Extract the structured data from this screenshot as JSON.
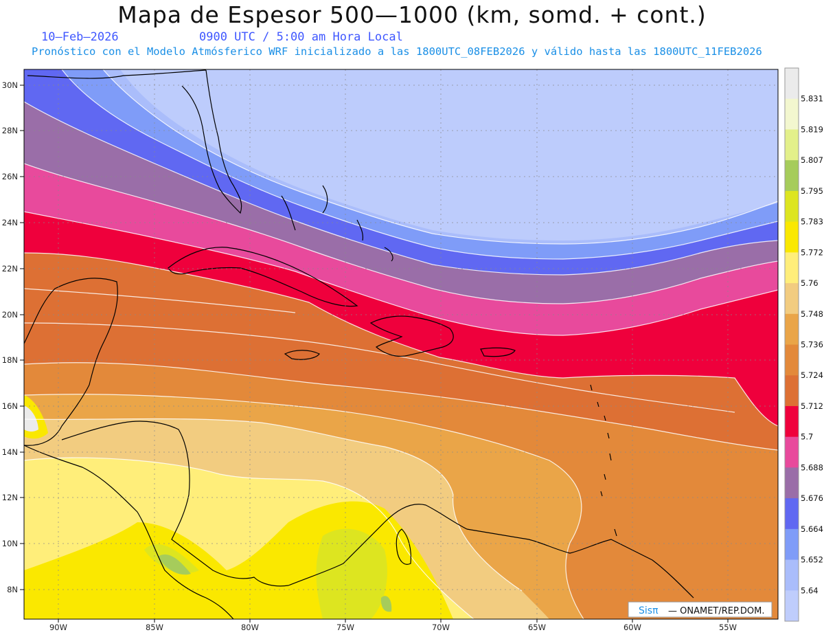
{
  "title": "Mapa de Espesor 500—1000 (km, somd. + cont.)",
  "date": "10—Feb—2026",
  "time": "0900 UTC / 5:00 am Hora Local",
  "subtitle": "Pronóstico con el Modelo Atmósferico WRF inicializado a las 1800UTC_08FEB2026 y válido hasta las  1800UTC_11FEB2026",
  "credit": {
    "brand": "Sisπ",
    "text": "— ONAMET/REP.DOM."
  },
  "lat_labels": [
    "30N",
    "28N",
    "26N",
    "24N",
    "22N",
    "20N",
    "18N",
    "16N",
    "14N",
    "12N",
    "10N",
    "8N"
  ],
  "lon_labels": [
    "90W",
    "85W",
    "80W",
    "75W",
    "70W",
    "65W",
    "60W",
    "55W"
  ],
  "legend": {
    "values": [
      "5.831",
      "5.819",
      "5.807",
      "5.795",
      "5.783",
      "5.772",
      "5.76",
      "5.748",
      "5.736",
      "5.724",
      "5.712",
      "5.7",
      "5.688",
      "5.676",
      "5.664",
      "5.652",
      "5.64"
    ],
    "colors": [
      "#ebebeb",
      "#f3f7cf",
      "#e3f08a",
      "#a6cc5b",
      "#dde520",
      "#fae800",
      "#ffee7a",
      "#f2cc80",
      "#eaa548",
      "#e3893a",
      "#dd7034",
      "#ef003c",
      "#e84a9c",
      "#9a6ea8",
      "#6068f2",
      "#7f9cf8",
      "#aabdfb",
      "#bfcdfc"
    ]
  }
}
